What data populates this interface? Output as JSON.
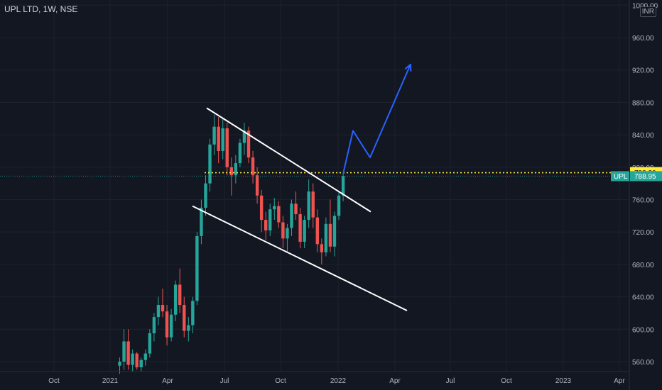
{
  "header": {
    "symbol_title": "UPL LTD, 1W, NSE",
    "currency": "INR"
  },
  "colors": {
    "background": "#131722",
    "up": "#26a69a",
    "down": "#ef5350",
    "trendline": "#ffffff",
    "projection": "#2962ff",
    "level": "#ffeb3b"
  },
  "chart_data": {
    "type": "candlestick",
    "x_ticks": [
      "Oct",
      "2021",
      "Apr",
      "Jul",
      "Oct",
      "2022",
      "Apr",
      "Jul",
      "Oct",
      "2023",
      "Apr"
    ],
    "y_ticks": [
      560,
      600,
      640,
      680,
      720,
      760,
      800,
      840,
      880,
      920,
      960,
      1000
    ],
    "y_tick_labels": [
      "560.00",
      "600.00",
      "640.00",
      "680.00",
      "720.00",
      "760.00",
      "800.00",
      "840.00",
      "880.00",
      "920.00",
      "960.00",
      "1000.00"
    ],
    "ylim": [
      548,
      1005
    ],
    "current_price": {
      "label": "UPL",
      "value": "788.95"
    },
    "level": {
      "value": "793.20"
    },
    "candles": [
      {
        "o": 555,
        "h": 565,
        "l": 545,
        "c": 560
      },
      {
        "o": 560,
        "h": 600,
        "l": 550,
        "c": 585
      },
      {
        "o": 585,
        "h": 600,
        "l": 550,
        "c": 556
      },
      {
        "o": 556,
        "h": 575,
        "l": 548,
        "c": 570
      },
      {
        "o": 570,
        "h": 572,
        "l": 550,
        "c": 553
      },
      {
        "o": 553,
        "h": 565,
        "l": 548,
        "c": 562
      },
      {
        "o": 562,
        "h": 575,
        "l": 555,
        "c": 570
      },
      {
        "o": 570,
        "h": 600,
        "l": 565,
        "c": 595
      },
      {
        "o": 595,
        "h": 620,
        "l": 585,
        "c": 615
      },
      {
        "o": 615,
        "h": 640,
        "l": 605,
        "c": 630
      },
      {
        "o": 630,
        "h": 650,
        "l": 615,
        "c": 622
      },
      {
        "o": 622,
        "h": 630,
        "l": 580,
        "c": 590
      },
      {
        "o": 590,
        "h": 625,
        "l": 585,
        "c": 618
      },
      {
        "o": 618,
        "h": 660,
        "l": 610,
        "c": 655
      },
      {
        "o": 655,
        "h": 675,
        "l": 620,
        "c": 630
      },
      {
        "o": 630,
        "h": 640,
        "l": 590,
        "c": 598
      },
      {
        "o": 598,
        "h": 615,
        "l": 585,
        "c": 605
      },
      {
        "o": 605,
        "h": 640,
        "l": 595,
        "c": 635
      },
      {
        "o": 635,
        "h": 720,
        "l": 630,
        "c": 715
      },
      {
        "o": 715,
        "h": 760,
        "l": 705,
        "c": 750
      },
      {
        "o": 750,
        "h": 790,
        "l": 740,
        "c": 780
      },
      {
        "o": 780,
        "h": 835,
        "l": 770,
        "c": 828
      },
      {
        "o": 828,
        "h": 865,
        "l": 815,
        "c": 850
      },
      {
        "o": 850,
        "h": 862,
        "l": 805,
        "c": 820
      },
      {
        "o": 820,
        "h": 860,
        "l": 810,
        "c": 848
      },
      {
        "o": 848,
        "h": 855,
        "l": 790,
        "c": 800
      },
      {
        "o": 800,
        "h": 812,
        "l": 765,
        "c": 790
      },
      {
        "o": 790,
        "h": 815,
        "l": 780,
        "c": 805
      },
      {
        "o": 805,
        "h": 835,
        "l": 800,
        "c": 830
      },
      {
        "o": 830,
        "h": 855,
        "l": 815,
        "c": 845
      },
      {
        "o": 845,
        "h": 850,
        "l": 805,
        "c": 812
      },
      {
        "o": 812,
        "h": 820,
        "l": 780,
        "c": 790
      },
      {
        "o": 790,
        "h": 800,
        "l": 755,
        "c": 765
      },
      {
        "o": 765,
        "h": 772,
        "l": 720,
        "c": 735
      },
      {
        "o": 735,
        "h": 745,
        "l": 710,
        "c": 722
      },
      {
        "o": 722,
        "h": 755,
        "l": 715,
        "c": 748
      },
      {
        "o": 748,
        "h": 762,
        "l": 735,
        "c": 752
      },
      {
        "o": 752,
        "h": 758,
        "l": 725,
        "c": 732
      },
      {
        "o": 732,
        "h": 740,
        "l": 700,
        "c": 712
      },
      {
        "o": 712,
        "h": 730,
        "l": 695,
        "c": 725
      },
      {
        "o": 725,
        "h": 760,
        "l": 715,
        "c": 755
      },
      {
        "o": 755,
        "h": 770,
        "l": 735,
        "c": 742
      },
      {
        "o": 742,
        "h": 750,
        "l": 700,
        "c": 708
      },
      {
        "o": 708,
        "h": 740,
        "l": 700,
        "c": 735
      },
      {
        "o": 735,
        "h": 785,
        "l": 725,
        "c": 770
      },
      {
        "o": 770,
        "h": 780,
        "l": 725,
        "c": 738
      },
      {
        "o": 738,
        "h": 748,
        "l": 695,
        "c": 705
      },
      {
        "o": 705,
        "h": 712,
        "l": 680,
        "c": 695
      },
      {
        "o": 695,
        "h": 738,
        "l": 690,
        "c": 730
      },
      {
        "o": 730,
        "h": 760,
        "l": 695,
        "c": 702
      },
      {
        "o": 702,
        "h": 745,
        "l": 690,
        "c": 740
      },
      {
        "o": 740,
        "h": 770,
        "l": 735,
        "c": 765
      },
      {
        "o": 765,
        "h": 793,
        "l": 758,
        "c": 789
      }
    ]
  }
}
